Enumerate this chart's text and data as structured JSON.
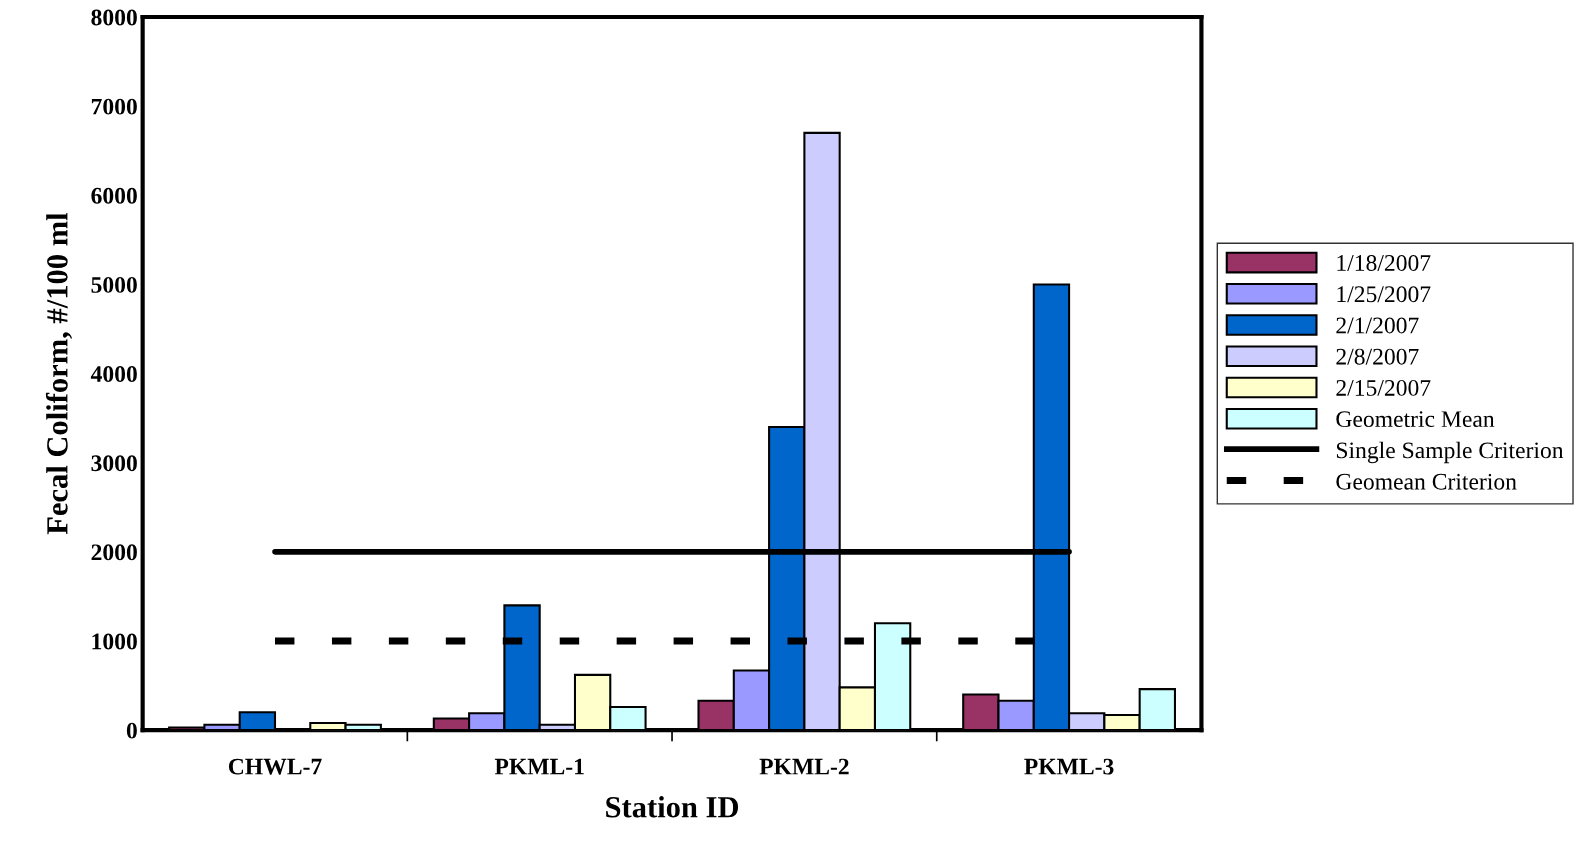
{
  "chart_data": {
    "type": "bar",
    "xlabel": "Station ID",
    "ylabel": "Fecal Coliform, #/100 ml",
    "categories": [
      "CHWL-7",
      "PKML-1",
      "PKML-2",
      "PKML-3"
    ],
    "series": [
      {
        "name": "1/18/2007",
        "color": "#993366",
        "values": [
          30,
          130,
          330,
          400
        ]
      },
      {
        "name": "1/25/2007",
        "color": "#9999ff",
        "values": [
          60,
          190,
          670,
          330
        ]
      },
      {
        "name": "2/1/2007",
        "color": "#0066cc",
        "values": [
          200,
          1400,
          3400,
          5000
        ]
      },
      {
        "name": "2/8/2007",
        "color": "#ccccff",
        "values": [
          null,
          60,
          6700,
          190
        ]
      },
      {
        "name": "2/15/2007",
        "color": "#ffffcc",
        "values": [
          80,
          620,
          480,
          170
        ]
      },
      {
        "name": "Geometric Mean",
        "color": "#ccffff",
        "values": [
          60,
          260,
          1200,
          460
        ]
      },
      {
        "name": "Single Sample Criterion",
        "type": "line",
        "color": "#000000",
        "line_style": "solid",
        "values": [
          2000,
          2000,
          2000,
          2000
        ]
      },
      {
        "name": "Geomean Criterion",
        "type": "line",
        "color": "#000000",
        "line_style": "dashed",
        "values": [
          1000,
          1000,
          1000,
          1000
        ]
      }
    ],
    "ylim": [
      0,
      8000
    ],
    "yticks": [
      0,
      1000,
      2000,
      3000,
      4000,
      5000,
      6000,
      7000,
      8000
    ],
    "grid": false,
    "legend": "right"
  }
}
